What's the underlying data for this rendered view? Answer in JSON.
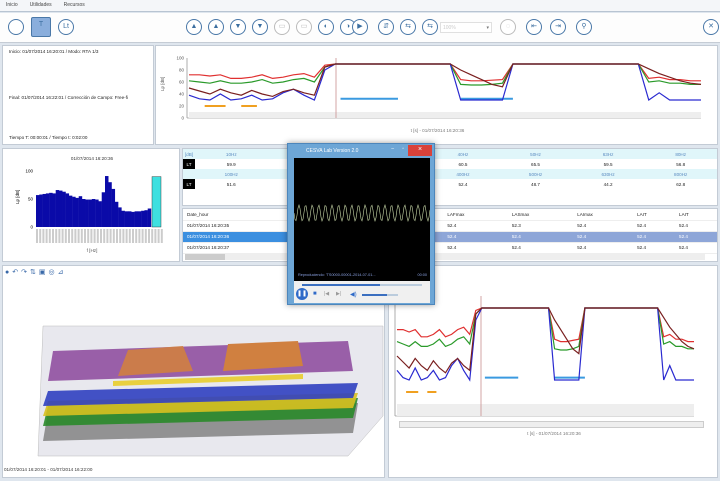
{
  "menu": [
    "Inicio",
    "Utilidades",
    "Recursos"
  ],
  "toolbar": {
    "zoom_value": "100%"
  },
  "info": {
    "start": "Inicio: 01/07/2014 16:20:01  /  Modo: RTA 1/3",
    "end": "Final: 01/07/2014 16:22:01  /  Corrección de Campo: Free-fi",
    "times": "Tiempo T: 00:00:01  /  Tiempo t: 0:02:00"
  },
  "top_chart": {
    "ylabel": "Lp [dB]",
    "xlabel": "t [s]  -  01/07/2014 16:20:36",
    "yticks": [
      "100",
      "80",
      "60",
      "40",
      "20",
      "0"
    ]
  },
  "chart_data": [
    {
      "type": "line",
      "ylim": [
        0,
        100
      ],
      "colors": {
        "red": "#e03030",
        "green": "#2a9a2a",
        "blue": "#2a2ad0",
        "brown": "#7a2020"
      },
      "series": [
        {
          "color": "red",
          "values": [
            72,
            72,
            70,
            72,
            66,
            66,
            68,
            72,
            66,
            68,
            72,
            74,
            68,
            88,
            90,
            90,
            90,
            90,
            90,
            90,
            90,
            90,
            90,
            90,
            90,
            90,
            64,
            62,
            62,
            63,
            64,
            90,
            90,
            90,
            90,
            90,
            90,
            90,
            90,
            90,
            90,
            90,
            90,
            90,
            66,
            68,
            64,
            64,
            62,
            62
          ]
        },
        {
          "color": "green",
          "values": [
            62,
            60,
            58,
            62,
            58,
            58,
            60,
            64,
            58,
            60,
            64,
            66,
            60,
            85,
            90,
            90,
            90,
            90,
            90,
            90,
            90,
            90,
            90,
            90,
            90,
            90,
            56,
            55,
            55,
            56,
            58,
            90,
            90,
            90,
            90,
            90,
            90,
            90,
            90,
            90,
            90,
            90,
            90,
            90,
            60,
            62,
            58,
            58,
            56,
            56
          ]
        },
        {
          "color": "blue",
          "values": [
            38,
            32,
            30,
            40,
            30,
            32,
            38,
            30,
            32,
            42,
            48,
            38,
            30,
            80,
            90,
            90,
            90,
            90,
            90,
            90,
            90,
            90,
            90,
            90,
            90,
            90,
            30,
            30,
            30,
            30,
            30,
            90,
            90,
            90,
            90,
            90,
            90,
            90,
            90,
            90,
            90,
            90,
            90,
            90,
            30,
            42,
            30,
            30,
            30,
            30
          ]
        },
        {
          "color": "brown",
          "values": [
            50,
            45,
            40,
            48,
            42,
            38,
            46,
            40,
            36,
            44,
            48,
            42,
            38,
            85,
            90,
            90,
            90,
            90,
            90,
            90,
            90,
            90,
            90,
            90,
            90,
            90,
            80,
            72,
            64,
            56,
            52,
            90,
            90,
            90,
            90,
            90,
            90,
            90,
            90,
            90,
            90,
            90,
            90,
            90,
            82,
            74,
            68,
            62,
            58,
            56
          ]
        }
      ]
    },
    {
      "type": "bar",
      "title": "01/07/2014 16:20:36",
      "ylabel": "Lp [dB]",
      "xlabel": "f [Hz]",
      "ylim": [
        0,
        100
      ],
      "yticks": [
        "100",
        "50",
        "0"
      ],
      "values": [
        57,
        58,
        59,
        60,
        61,
        60,
        66,
        65,
        63,
        60,
        56,
        54,
        52,
        55,
        50,
        49,
        49,
        50,
        49,
        46,
        62,
        91,
        80,
        68,
        45,
        35,
        29,
        28,
        28,
        27,
        28,
        28,
        29,
        30,
        33
      ],
      "highlight_value": 90,
      "color": "#0a0aa8",
      "highlight_color": "#3ee0e0"
    }
  ],
  "freq_table": {
    "unit": "[dB]",
    "row_label": "LT",
    "bands1": [
      "10Hz",
      "12.5Hz",
      "",
      "",
      "",
      "31.5Hz",
      "40Hz",
      "50Hz",
      "63Hz",
      "80Hz"
    ],
    "values1": [
      "59.9",
      "59.7",
      "",
      "",
      "",
      "62.1",
      "60.5",
      "65.5",
      "59.5",
      "56.8"
    ],
    "bands2": [
      "100Hz",
      "125Hz",
      "",
      "",
      "",
      "315Hz",
      "400Hz",
      "500Hz",
      "630Hz",
      "800Hz"
    ],
    "values2": [
      "51.6",
      "55.6",
      "",
      "",
      "",
      "51.1",
      "52.4",
      "48.7",
      "44.2",
      "62.8"
    ]
  },
  "data_table": {
    "headers": [
      "Date_hour",
      "Elapsed_T",
      "",
      "",
      "LAFmax",
      "LASmax",
      "LAImax",
      "LAIT",
      "LAIT"
    ],
    "rows": [
      [
        "01/07/2014 16:20:35",
        "00:00:01",
        "",
        "",
        "52.4",
        "52.3",
        "52.4",
        "52.4",
        "52.4"
      ],
      [
        "01/07/2014 16:20:36",
        "00:00:01",
        "",
        "",
        "52.4",
        "52.4",
        "52.4",
        "52.4",
        "52.4"
      ],
      [
        "01/07/2014 16:20:37",
        "00:00:01",
        "",
        "",
        "52.4",
        "52.4",
        "52.4",
        "52.4",
        "52.4"
      ]
    ]
  },
  "bottom_chart": {
    "xlabel": "t [s]  -  01/07/2014 16:20:36"
  },
  "status": "01/07/2014 16:20:01 - 01/07/2014 16:22:00",
  "popup": {
    "title": "CESVA Lab Version 2.0",
    "playing": "Reproduciendo: 'TS0000-00001-2014-07-01...",
    "time": "00:00",
    "volume_level": 0.7,
    "position_level": 0.65
  }
}
